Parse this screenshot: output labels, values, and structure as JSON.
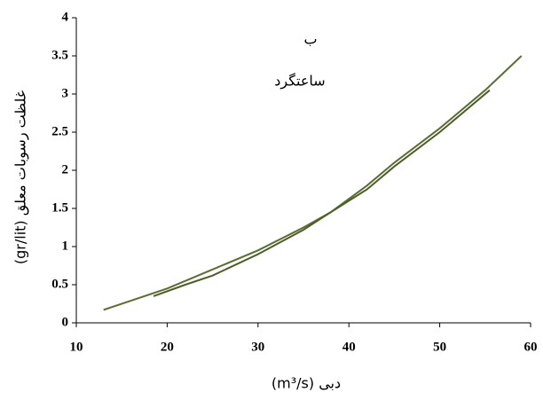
{
  "chart_data": {
    "type": "line",
    "title": "ب",
    "annotation": "ساعتگرد",
    "x_label": "دبی (m³/s)",
    "y_label": "غلظت رسوبات معلق (gr/lit)",
    "series": [
      {
        "name": null,
        "color": "#5a6e32",
        "x": [
          13,
          20,
          25,
          30,
          35,
          38,
          42,
          45,
          50,
          55,
          59
        ],
        "values": [
          0.17,
          0.45,
          0.7,
          0.95,
          1.25,
          1.45,
          1.8,
          2.1,
          2.55,
          3.05,
          3.5
        ]
      },
      {
        "name": null,
        "color": "#4a5e28",
        "x": [
          18.5,
          22,
          25,
          30,
          35,
          38,
          42,
          45,
          50,
          55.5
        ],
        "values": [
          0.35,
          0.5,
          0.62,
          0.9,
          1.22,
          1.45,
          1.75,
          2.05,
          2.5,
          3.05
        ]
      }
    ],
    "xlim": [
      10,
      60
    ],
    "xticks": [
      10,
      20,
      30,
      40,
      50,
      60
    ],
    "ylim": [
      0,
      4
    ],
    "yticks": [
      0,
      0.5,
      1,
      1.5,
      2,
      2.5,
      3,
      3.5,
      4
    ]
  }
}
